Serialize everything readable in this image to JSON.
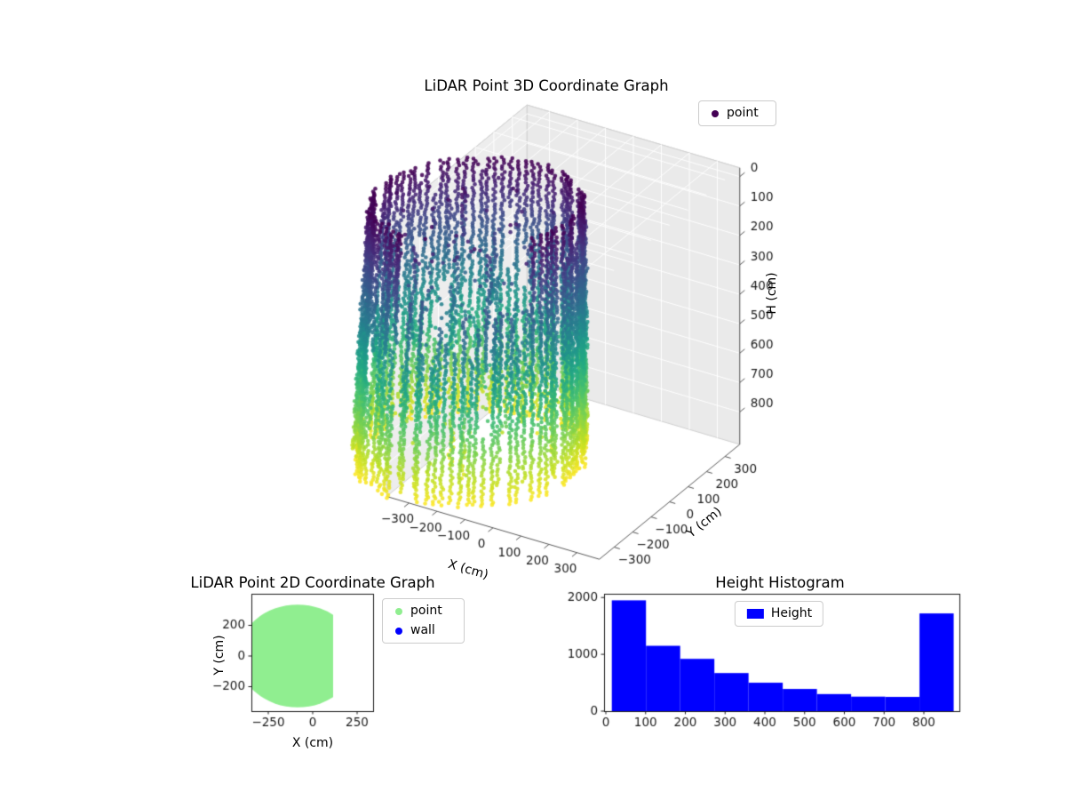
{
  "figure": {
    "background": "#ffffff"
  },
  "chart_data": [
    {
      "type": "scatter",
      "projection": "3d",
      "title": "LiDAR Point 3D Coordinate Graph",
      "xlabel": "X (cm)",
      "ylabel": "Y (cm)",
      "zlabel": "H (cm)",
      "xticks": [
        -300,
        -200,
        -100,
        0,
        100,
        200,
        300
      ],
      "yticks": [
        -300,
        -200,
        -100,
        0,
        100,
        200,
        300
      ],
      "zticks": [
        0,
        100,
        200,
        300,
        400,
        500,
        600,
        700,
        800
      ],
      "xlim": [
        -380,
        380
      ],
      "ylim": [
        -380,
        380
      ],
      "zlim": [
        0,
        880
      ],
      "z_axis_inverted": true,
      "legend_position": "upper right",
      "grid": true,
      "series": [
        {
          "name": "point",
          "marker": "dot",
          "colormap": "viridis",
          "color_by": "height",
          "legend_marker_color": "#440154"
        }
      ],
      "content": {
        "shape": "cylindrical wall point cloud scanned in vertical columns",
        "radius_cm": 330,
        "height_min_cm": 0,
        "height_max_cm": 880,
        "scan_columns": 86,
        "color_low_h": "#440154",
        "color_high_h": "#fde725"
      }
    },
    {
      "type": "scatter",
      "title": "LiDAR Point 2D Coordinate Graph",
      "xlabel": "X (cm)",
      "ylabel": "Y (cm)",
      "xticks": [
        -250,
        0,
        250
      ],
      "yticks": [
        -200,
        0,
        200
      ],
      "xlim": [
        -345,
        340
      ],
      "ylim": [
        -359,
        406
      ],
      "legend_position": "outside upper right",
      "series": [
        {
          "name": "point",
          "color": "#90ee90"
        },
        {
          "name": "wall",
          "color": "#0000ff"
        }
      ],
      "region": {
        "shape": "filled circle clipped on right side",
        "cx_cm": -85,
        "cy_cm": 0,
        "radius_cm": 335,
        "clip_x_max_cm": 115
      }
    },
    {
      "type": "bar",
      "title": "Height Histogram",
      "legend_label": "Height",
      "bar_color": "#0000ff",
      "bin_edges": [
        15,
        101,
        187,
        273,
        359,
        445,
        531,
        617,
        703,
        789,
        875
      ],
      "values": [
        1950,
        1150,
        920,
        670,
        500,
        390,
        300,
        255,
        250,
        1720
      ],
      "xticks": [
        0,
        100,
        200,
        300,
        400,
        500,
        600,
        700,
        800
      ],
      "yticks": [
        0,
        1000,
        2000
      ],
      "xlim": [
        -4,
        889
      ],
      "ylim": [
        0,
        2065
      ],
      "legend_position": "upper center"
    }
  ],
  "style": {
    "background": "#ffffff",
    "text_color": "#1a1a1a",
    "grid_color": "#ffffff",
    "pane_top": "#f2f2f2",
    "pane_left": "#ededed",
    "pane_right": "#eaeaea",
    "axis_edge": "#cfcfcf",
    "axis_line": "#5a5a5a",
    "tick_color": "#555555",
    "spine_color": "#1a1a1a",
    "legend_border": "#cccccc",
    "viridis_stops": [
      "#440154",
      "#482475",
      "#414487",
      "#355f8d",
      "#2a788e",
      "#21918c",
      "#22a884",
      "#44bf70",
      "#7ad151",
      "#bddf26",
      "#fde725"
    ]
  }
}
